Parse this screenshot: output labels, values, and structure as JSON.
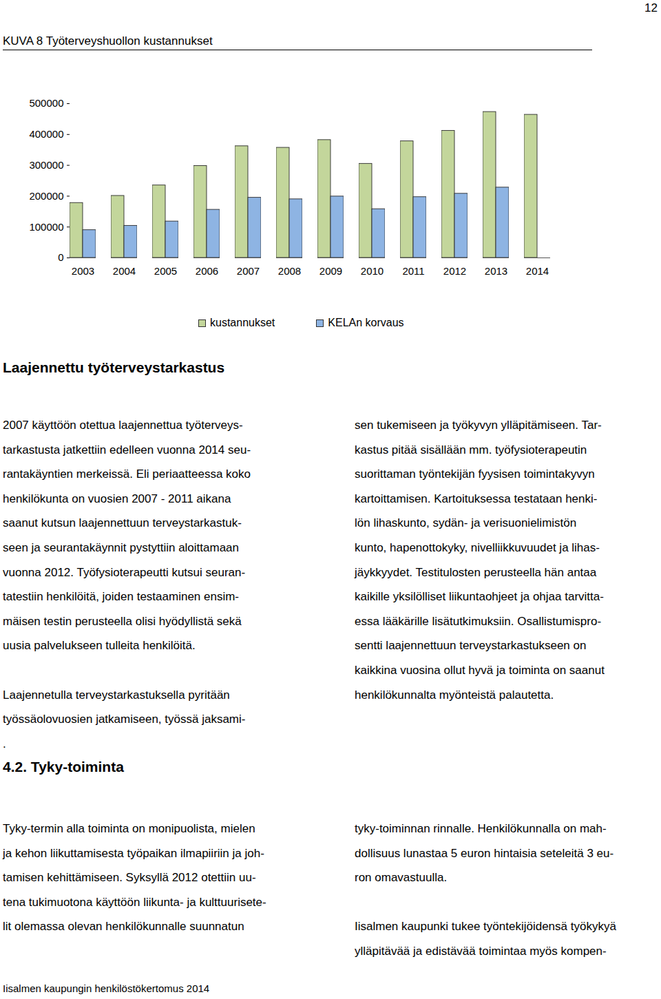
{
  "page_number": "12",
  "figure_caption": "KUVA 8 Työterveyshuollon kustannukset",
  "chart_data": {
    "type": "bar",
    "categories": [
      "2003",
      "2004",
      "2005",
      "2006",
      "2007",
      "2008",
      "2009",
      "2010",
      "2011",
      "2012",
      "2013",
      "2014"
    ],
    "series": [
      {
        "name": "kustannukset",
        "color": "#c3d69b",
        "values": [
          178000,
          201000,
          235000,
          298000,
          362000,
          357000,
          382000,
          305000,
          378000,
          412000,
          473000,
          464000
        ]
      },
      {
        "name": "KELAn korvaus",
        "color": "#8eb4e3",
        "values": [
          90000,
          104000,
          118000,
          156000,
          195000,
          190000,
          199000,
          158000,
          197000,
          208000,
          228000,
          null
        ]
      }
    ],
    "ylim": [
      0,
      500000
    ],
    "yticks": [
      0,
      100000,
      200000,
      300000,
      400000,
      500000
    ],
    "grid": false,
    "legend": "bottom"
  },
  "sections": [
    {
      "heading": "Laajennettu työterveystarkastus",
      "columns": [
        [
          [
            "2007 käyttöön otettua laajennettua työterveys-",
            "tarkastusta jatkettiin edelleen vuonna 2014 seu-",
            "rantakäyntien merkeissä. Eli periaatteessa koko",
            "henkilökunta on vuosien 2007 - 2011 aikana",
            "saanut kutsun laajennettuun terveystarkastuk-",
            "seen ja seurantakäynnit pystyttiin aloittamaan",
            "vuonna 2012. Työfysioterapeutti kutsui seuran-",
            "tatestiin henkilöitä, joiden testaaminen ensim-",
            "mäisen testin perusteella olisi hyödyllistä sekä",
            "uusia palvelukseen tulleita henkilöitä."
          ],
          [
            "Laajennetulla terveystarkastuksella pyritään",
            "työssäolovuosien jatkamiseen, työssä jaksami-",
            "."
          ]
        ],
        [
          [
            "sen tukemiseen ja työkyvyn ylläpitämiseen. Tar-",
            "kastus pitää sisällään mm. työfysioterapeutin",
            "suorittaman työntekijän fyysisen toimintakyvyn",
            "kartoittamisen. Kartoituksessa testataan henki-",
            "lön lihaskunto, sydän- ja verisuonielimistön",
            "kunto, hapenottokyky, nivelliikkuvuudet ja lihas-",
            "jäykkyydet. Testitulosten perusteella hän antaa",
            "kaikille yksilölliset liikuntaohjeet ja ohjaa tarvitta-",
            "essa lääkärille lisätutkimuksiin. Osallistumispro-",
            "sentti laajennettuun terveystarkastukseen on",
            "kaikkina vuosina ollut hyvä ja toiminta on saanut",
            "henkilökunnalta myönteistä palautetta."
          ]
        ]
      ]
    },
    {
      "heading": "4.2. Tyky-toiminta",
      "columns": [
        [
          [
            "Tyky-termin alla toiminta on monipuolista, mielen",
            "ja kehon liikuttamisesta työpaikan ilmapiiriin ja joh-",
            "tamisen kehittämiseen. Syksyllä 2012 otettiin uu-",
            "tena tukimuotona käyttöön liikunta- ja kulttuurisete-",
            "lit olemassa olevan henkilökunnalle suunnatun"
          ]
        ],
        [
          [
            "tyky-toiminnan rinnalle. Henkilökunnalla on mah-",
            "dollisuus lunastaa 5 euron hintaisia seteleitä 3 eu-",
            "ron omavastuulla."
          ],
          [
            "Iisalmen kaupunki tukee työntekijöidensä työkykyä",
            "ylläpitävää ja edistävää toimintaa myös kompen-"
          ]
        ]
      ]
    }
  ],
  "footer": "Iisalmen kaupungin henkilöstökertomus 2014"
}
